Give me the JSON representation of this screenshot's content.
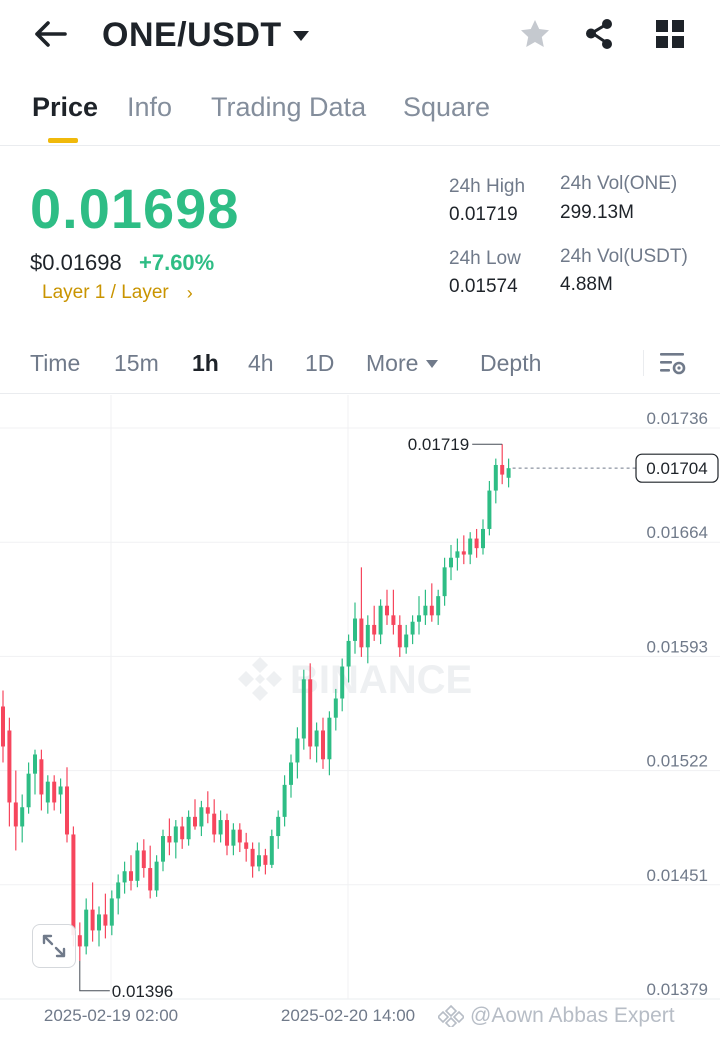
{
  "header": {
    "pair": "ONE/USDT",
    "icons": {
      "back": "arrow-left-icon",
      "dropdown": "caret-down-icon",
      "favorite": "star-icon",
      "share": "share-icon",
      "grid": "grid-icon"
    }
  },
  "tabs": [
    {
      "label": "Price",
      "active": true
    },
    {
      "label": "Info",
      "active": false
    },
    {
      "label": "Trading Data",
      "active": false
    },
    {
      "label": "Square",
      "active": false
    }
  ],
  "summary": {
    "price": "0.01698",
    "price_usd": "$0.01698",
    "change": "+7.60%",
    "tag": "Layer 1 / Layer",
    "high_label": "24h High",
    "high_value": "0.01719",
    "low_label": "24h Low",
    "low_value": "0.01574",
    "vol_one_label": "24h Vol(ONE)",
    "vol_one_value": "299.13M",
    "vol_usdt_label": "24h Vol(USDT)",
    "vol_usdt_value": "4.88M",
    "up_color": "#2ebd85",
    "down_color": "#f6465d",
    "accent_color": "#f0b90b"
  },
  "intervals": {
    "items": [
      {
        "label": "Time",
        "active": false
      },
      {
        "label": "15m",
        "active": false
      },
      {
        "label": "1h",
        "active": true
      },
      {
        "label": "4h",
        "active": false
      },
      {
        "label": "1D",
        "active": false
      }
    ],
    "more": "More",
    "depth": "Depth",
    "settings_icon": "chart-settings-icon"
  },
  "chart_data": {
    "type": "candlestick",
    "watermark": "BINANCE",
    "yticks": [
      "0.01736",
      "0.01664",
      "0.01593",
      "0.01522",
      "0.01451",
      "0.01379"
    ],
    "ylim": [
      0.01379,
      0.01736
    ],
    "xticks": [
      "2025-02-19 02:00",
      "2025-02-20 14:00"
    ],
    "last_price": "0.01704",
    "high_marker": "0.01719",
    "low_marker": "0.01396",
    "candles": [
      {
        "o": 0.01555,
        "h": 0.01565,
        "l": 0.0152,
        "c": 0.0153
      },
      {
        "o": 0.0154,
        "h": 0.01548,
        "l": 0.0148,
        "c": 0.01495
      },
      {
        "o": 0.01495,
        "h": 0.01515,
        "l": 0.01465,
        "c": 0.0148
      },
      {
        "o": 0.0148,
        "h": 0.015,
        "l": 0.0147,
        "c": 0.01492
      },
      {
        "o": 0.01492,
        "h": 0.0152,
        "l": 0.01488,
        "c": 0.01513
      },
      {
        "o": 0.01513,
        "h": 0.01528,
        "l": 0.015,
        "c": 0.01525
      },
      {
        "o": 0.01522,
        "h": 0.01528,
        "l": 0.0149,
        "c": 0.015
      },
      {
        "o": 0.01495,
        "h": 0.01512,
        "l": 0.01488,
        "c": 0.01508
      },
      {
        "o": 0.01508,
        "h": 0.01512,
        "l": 0.0149,
        "c": 0.01495
      },
      {
        "o": 0.015,
        "h": 0.0151,
        "l": 0.01488,
        "c": 0.01505
      },
      {
        "o": 0.01505,
        "h": 0.01517,
        "l": 0.0147,
        "c": 0.01475
      },
      {
        "o": 0.01475,
        "h": 0.0148,
        "l": 0.01405,
        "c": 0.01412
      },
      {
        "o": 0.01412,
        "h": 0.0142,
        "l": 0.01396,
        "c": 0.01405
      },
      {
        "o": 0.01405,
        "h": 0.01435,
        "l": 0.014,
        "c": 0.01428
      },
      {
        "o": 0.01428,
        "h": 0.01445,
        "l": 0.01408,
        "c": 0.01415
      },
      {
        "o": 0.01415,
        "h": 0.0143,
        "l": 0.01405,
        "c": 0.01425
      },
      {
        "o": 0.01425,
        "h": 0.01438,
        "l": 0.0141,
        "c": 0.01418
      },
      {
        "o": 0.01418,
        "h": 0.0144,
        "l": 0.01412,
        "c": 0.01435
      },
      {
        "o": 0.01435,
        "h": 0.0145,
        "l": 0.01425,
        "c": 0.01445
      },
      {
        "o": 0.01445,
        "h": 0.01458,
        "l": 0.01438,
        "c": 0.01452
      },
      {
        "o": 0.01452,
        "h": 0.01462,
        "l": 0.0144,
        "c": 0.01446
      },
      {
        "o": 0.01446,
        "h": 0.0147,
        "l": 0.01442,
        "c": 0.01465
      },
      {
        "o": 0.01465,
        "h": 0.01472,
        "l": 0.01448,
        "c": 0.01454
      },
      {
        "o": 0.01454,
        "h": 0.01468,
        "l": 0.01435,
        "c": 0.0144
      },
      {
        "o": 0.0144,
        "h": 0.01462,
        "l": 0.01436,
        "c": 0.01458
      },
      {
        "o": 0.01458,
        "h": 0.01478,
        "l": 0.01452,
        "c": 0.01474
      },
      {
        "o": 0.01474,
        "h": 0.01485,
        "l": 0.01462,
        "c": 0.0147
      },
      {
        "o": 0.0147,
        "h": 0.01484,
        "l": 0.0146,
        "c": 0.0148
      },
      {
        "o": 0.0148,
        "h": 0.01486,
        "l": 0.01466,
        "c": 0.01472
      },
      {
        "o": 0.01472,
        "h": 0.0149,
        "l": 0.01468,
        "c": 0.01486
      },
      {
        "o": 0.01486,
        "h": 0.01497,
        "l": 0.01478,
        "c": 0.0148
      },
      {
        "o": 0.0148,
        "h": 0.01496,
        "l": 0.01474,
        "c": 0.01492
      },
      {
        "o": 0.01492,
        "h": 0.01502,
        "l": 0.01482,
        "c": 0.01488
      },
      {
        "o": 0.01488,
        "h": 0.01497,
        "l": 0.0147,
        "c": 0.01475
      },
      {
        "o": 0.01475,
        "h": 0.0149,
        "l": 0.0147,
        "c": 0.01484
      },
      {
        "o": 0.01484,
        "h": 0.01488,
        "l": 0.01462,
        "c": 0.01468
      },
      {
        "o": 0.01468,
        "h": 0.01482,
        "l": 0.01462,
        "c": 0.01478
      },
      {
        "o": 0.01478,
        "h": 0.01482,
        "l": 0.01464,
        "c": 0.0147
      },
      {
        "o": 0.0147,
        "h": 0.01476,
        "l": 0.01458,
        "c": 0.01466
      },
      {
        "o": 0.01466,
        "h": 0.0147,
        "l": 0.01448,
        "c": 0.01455
      },
      {
        "o": 0.01455,
        "h": 0.0147,
        "l": 0.01452,
        "c": 0.01462
      },
      {
        "o": 0.01462,
        "h": 0.01466,
        "l": 0.0145,
        "c": 0.01456
      },
      {
        "o": 0.01456,
        "h": 0.01478,
        "l": 0.01454,
        "c": 0.01474
      },
      {
        "o": 0.01474,
        "h": 0.0149,
        "l": 0.01466,
        "c": 0.01486
      },
      {
        "o": 0.01486,
        "h": 0.01512,
        "l": 0.0148,
        "c": 0.01506
      },
      {
        "o": 0.01506,
        "h": 0.01525,
        "l": 0.01498,
        "c": 0.0152
      },
      {
        "o": 0.0152,
        "h": 0.01542,
        "l": 0.0151,
        "c": 0.01535
      },
      {
        "o": 0.01535,
        "h": 0.01578,
        "l": 0.01528,
        "c": 0.01572
      },
      {
        "o": 0.01572,
        "h": 0.01582,
        "l": 0.01522,
        "c": 0.0153
      },
      {
        "o": 0.0153,
        "h": 0.01545,
        "l": 0.0152,
        "c": 0.0154
      },
      {
        "o": 0.0154,
        "h": 0.01548,
        "l": 0.01516,
        "c": 0.01522
      },
      {
        "o": 0.01522,
        "h": 0.01552,
        "l": 0.01512,
        "c": 0.01548
      },
      {
        "o": 0.01548,
        "h": 0.01566,
        "l": 0.0154,
        "c": 0.0156
      },
      {
        "o": 0.0156,
        "h": 0.01585,
        "l": 0.01552,
        "c": 0.0158
      },
      {
        "o": 0.0158,
        "h": 0.016,
        "l": 0.0157,
        "c": 0.01596
      },
      {
        "o": 0.01596,
        "h": 0.0162,
        "l": 0.01588,
        "c": 0.0161
      },
      {
        "o": 0.0161,
        "h": 0.01642,
        "l": 0.01586,
        "c": 0.01592
      },
      {
        "o": 0.01592,
        "h": 0.01612,
        "l": 0.01582,
        "c": 0.01606
      },
      {
        "o": 0.01606,
        "h": 0.01618,
        "l": 0.01596,
        "c": 0.016
      },
      {
        "o": 0.016,
        "h": 0.01622,
        "l": 0.01594,
        "c": 0.01618
      },
      {
        "o": 0.01618,
        "h": 0.01628,
        "l": 0.01606,
        "c": 0.01612
      },
      {
        "o": 0.01612,
        "h": 0.01628,
        "l": 0.016,
        "c": 0.01606
      },
      {
        "o": 0.01606,
        "h": 0.01612,
        "l": 0.01586,
        "c": 0.01592
      },
      {
        "o": 0.01592,
        "h": 0.01606,
        "l": 0.01588,
        "c": 0.016
      },
      {
        "o": 0.016,
        "h": 0.01612,
        "l": 0.01594,
        "c": 0.01608
      },
      {
        "o": 0.01608,
        "h": 0.01624,
        "l": 0.016,
        "c": 0.01612
      },
      {
        "o": 0.01612,
        "h": 0.01628,
        "l": 0.01606,
        "c": 0.01618
      },
      {
        "o": 0.01618,
        "h": 0.01632,
        "l": 0.01608,
        "c": 0.01612
      },
      {
        "o": 0.01612,
        "h": 0.01628,
        "l": 0.01606,
        "c": 0.01624
      },
      {
        "o": 0.01624,
        "h": 0.01648,
        "l": 0.01618,
        "c": 0.01642
      },
      {
        "o": 0.01642,
        "h": 0.01656,
        "l": 0.01634,
        "c": 0.01648
      },
      {
        "o": 0.01648,
        "h": 0.0166,
        "l": 0.0164,
        "c": 0.01652
      },
      {
        "o": 0.01652,
        "h": 0.01662,
        "l": 0.01644,
        "c": 0.0165
      },
      {
        "o": 0.0165,
        "h": 0.01664,
        "l": 0.01644,
        "c": 0.0166
      },
      {
        "o": 0.0166,
        "h": 0.01666,
        "l": 0.01648,
        "c": 0.01654
      },
      {
        "o": 0.01654,
        "h": 0.01672,
        "l": 0.0165,
        "c": 0.01666
      },
      {
        "o": 0.01666,
        "h": 0.01696,
        "l": 0.01662,
        "c": 0.0169
      },
      {
        "o": 0.0169,
        "h": 0.0171,
        "l": 0.01682,
        "c": 0.01706
      },
      {
        "o": 0.01706,
        "h": 0.01719,
        "l": 0.01694,
        "c": 0.017
      },
      {
        "o": 0.01698,
        "h": 0.0171,
        "l": 0.01692,
        "c": 0.01704
      }
    ]
  },
  "credit": "@Aown Abbas Expert"
}
